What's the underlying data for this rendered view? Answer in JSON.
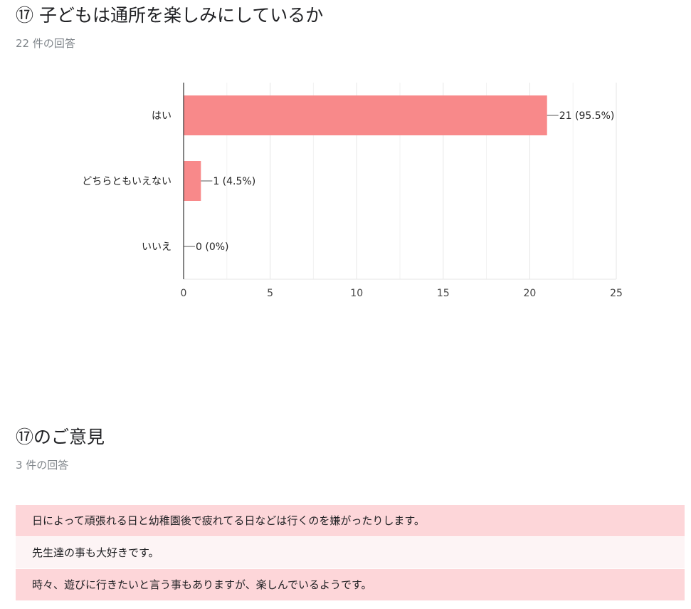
{
  "question1": {
    "title": "⑰ 子どもは通所を楽しみにしているか",
    "response_count": "22 件の回答"
  },
  "chart_data": {
    "type": "bar",
    "orientation": "horizontal",
    "categories": [
      "はい",
      "どちらともいえない",
      "いいえ"
    ],
    "values": [
      21,
      1,
      0
    ],
    "data_labels": [
      "21 (95.5%)",
      "1 (4.5%)",
      "0 (0%)"
    ],
    "xlim": [
      0,
      25
    ],
    "xticks": [
      0,
      5,
      10,
      15,
      20,
      25
    ],
    "grid": true,
    "bar_color": "#f8898a"
  },
  "question2": {
    "title": "⑰のご意見",
    "response_count": "3 件の回答",
    "responses": [
      "日によって頑張れる日と幼稚園後で疲れてる日などは行くのを嫌がったりします。",
      "先生達の事も大好きです。",
      "時々、遊びに行きたいと言う事もありますが、楽しんでいるようです。"
    ]
  },
  "colors": {
    "accent": "#f8898a",
    "response_odd": "#fdd6d9",
    "response_even": "#fdf4f5"
  }
}
